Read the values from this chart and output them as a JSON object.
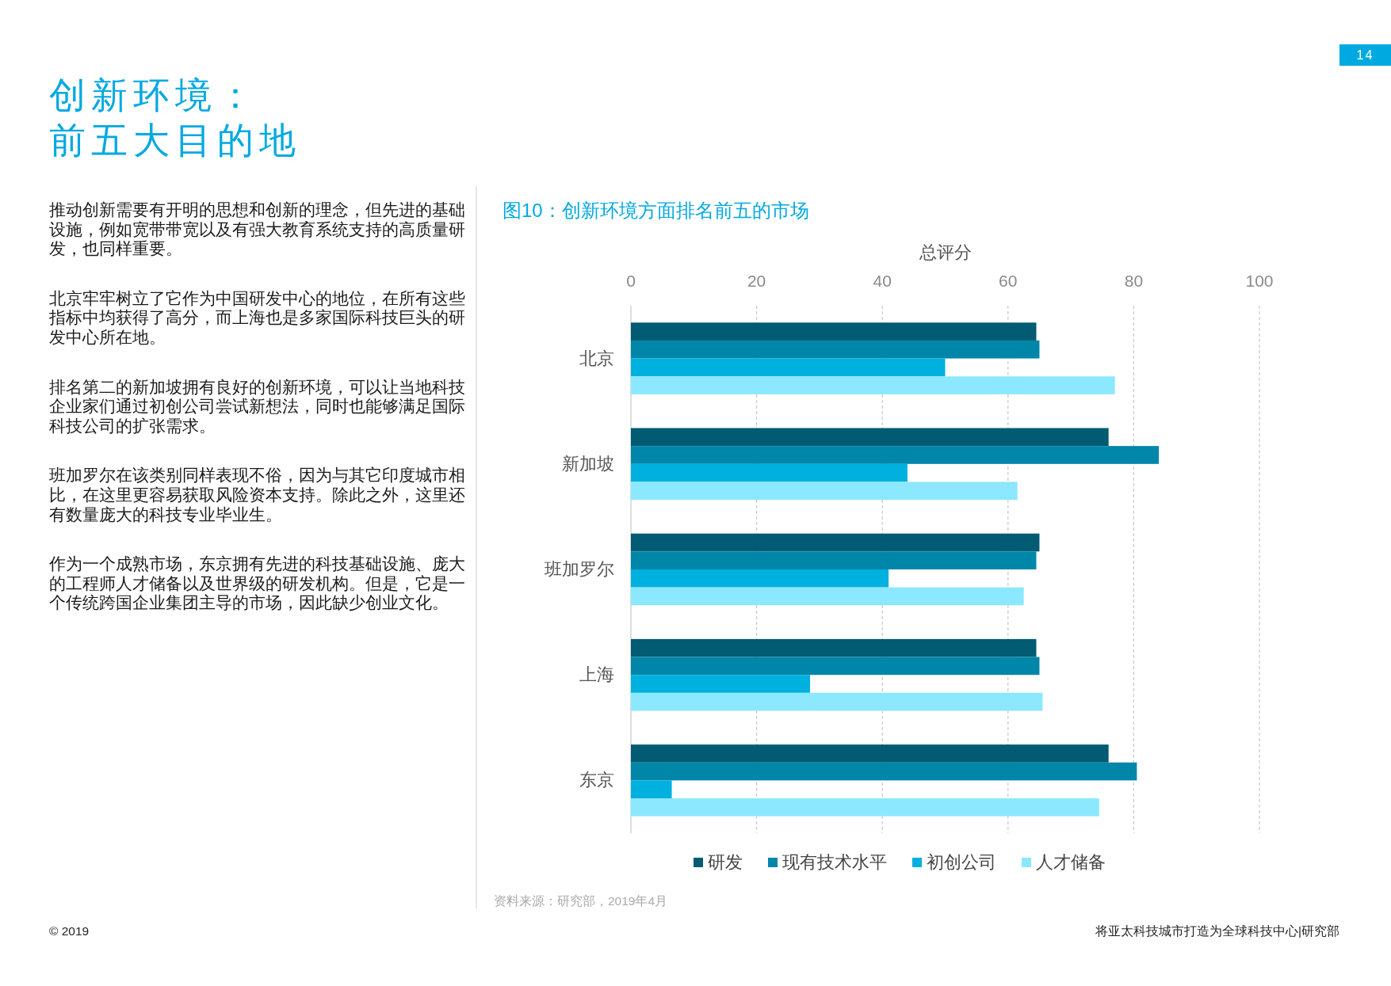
{
  "chart_data": {
    "type": "bar",
    "orientation": "horizontal",
    "title": "创新环境：",
    "subtitle": "前五大目的地",
    "xlabel": "总评分",
    "categories": [
      "北京",
      "新加坡",
      "班加罗尔",
      "上海",
      "东京"
    ],
    "series": [
      {
        "name": "研发",
        "color": "#005b73",
        "values": [
          64.5,
          76,
          65,
          64.5,
          76
        ]
      },
      {
        "name": "现有技术水平",
        "color": "#0086a9",
        "values": [
          65,
          84,
          64.5,
          65,
          80.5
        ]
      },
      {
        "name": "初创公司",
        "color": "#00b1df",
        "values": [
          50,
          44,
          41,
          28.5,
          6.5
        ]
      },
      {
        "name": "人才储备",
        "color": "#8be8ff",
        "values": [
          77,
          61.5,
          62.5,
          65.5,
          74.5
        ]
      }
    ],
    "xlim": [
      0,
      100
    ],
    "xticks": [
      0,
      20,
      40,
      60,
      80,
      100
    ],
    "grid": "x",
    "legend": "bottom",
    "annotations": [
      "14",
      "图10：创新环境方面排名前五的市场",
      "推动创新需要有开明的思想和创新的理念，但先进的基础设施，例如宽带带宽以及有强大教育系统支持的高质量研发，也同样重要。",
      "北京牢牢树立了它作为中国研发中心的地位，在所有这些指标中均获得了高分，而上海也是多家国际科技巨头的研发中心所在地。",
      "排名第二的新加坡拥有良好的创新环境，可以让当地科技企业家们通过初创公司尝试新想法，同时也能够满足国际科技公司的扩张需求。",
      "班加罗尔在该类别同样表现不俗，因为与其它印度城市相比，在这里更容易获取风险资本支持。除此之外，这里还有数量庞大的科技专业毕业生。",
      "作为一个成熟市场，东京拥有先进的科技基础设施、庞大的工程师人才储备以及世界级的研发机构。但是，它是一个传统跨国企业集团主导的市场，因此缺少创业文化。",
      "资料来源：研究部，2019年4月",
      "© 2019",
      "将亚太科技城市打造为全球科技中心|研究部"
    ]
  }
}
